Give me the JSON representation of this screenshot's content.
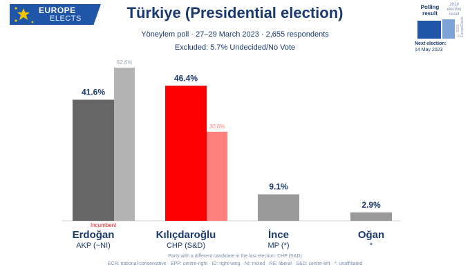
{
  "logo": {
    "line1": "EUROPE",
    "line2": "ELECTS"
  },
  "header": {
    "title": "Türkiye (Presidential election)",
    "subtitle": "Yöneylem poll · 27–29 March 2023 · 2,655 respondents",
    "excluded": "Excluded: 5.7% Undecided/No Vote"
  },
  "legend": {
    "polling_result": "Polling result",
    "previous_election": "2018 election result",
    "copyright": "© 2023 EuropeElects",
    "next_election_label": "Next election:",
    "next_election_date": "14 May 2023"
  },
  "incumbent_label": "Incumbent",
  "footer": {
    "line1": "Party with a different candidate in the last election: CHP (S&D)",
    "line2": "ECR: national-conservative · EPP: centre-right · ID: right-wing · NI: mixed · RE: liberal · S&D: centre-left · *: unaffiliated"
  },
  "colors": {
    "erdogan": "#666666",
    "erdogan_prev": "#b3b3b3",
    "kilicdaroglu": "#ff0000",
    "kilicdaroglu_prev": "#ff7f7f",
    "ince": "#999999",
    "ogan": "#999999",
    "text": "#1a3a6e"
  },
  "chart_data": {
    "type": "bar",
    "title": "Türkiye (Presidential election)",
    "categories": [
      "Erdoğan",
      "Kılıçdaroğlu",
      "İnce",
      "Oğan"
    ],
    "parties": [
      "AKP (~NI)",
      "CHP (S&D)",
      "MP (*)",
      "*"
    ],
    "series": [
      {
        "name": "Polling result",
        "values": [
          41.6,
          46.4,
          9.1,
          2.9
        ],
        "labels": [
          "41.6%",
          "46.4%",
          "9.1%",
          "2.9%"
        ]
      },
      {
        "name": "2018 election result",
        "values": [
          52.6,
          30.6,
          null,
          null
        ],
        "labels": [
          "52.6%",
          "30.6%",
          "",
          ""
        ]
      }
    ],
    "ylim": [
      0,
      55
    ]
  }
}
